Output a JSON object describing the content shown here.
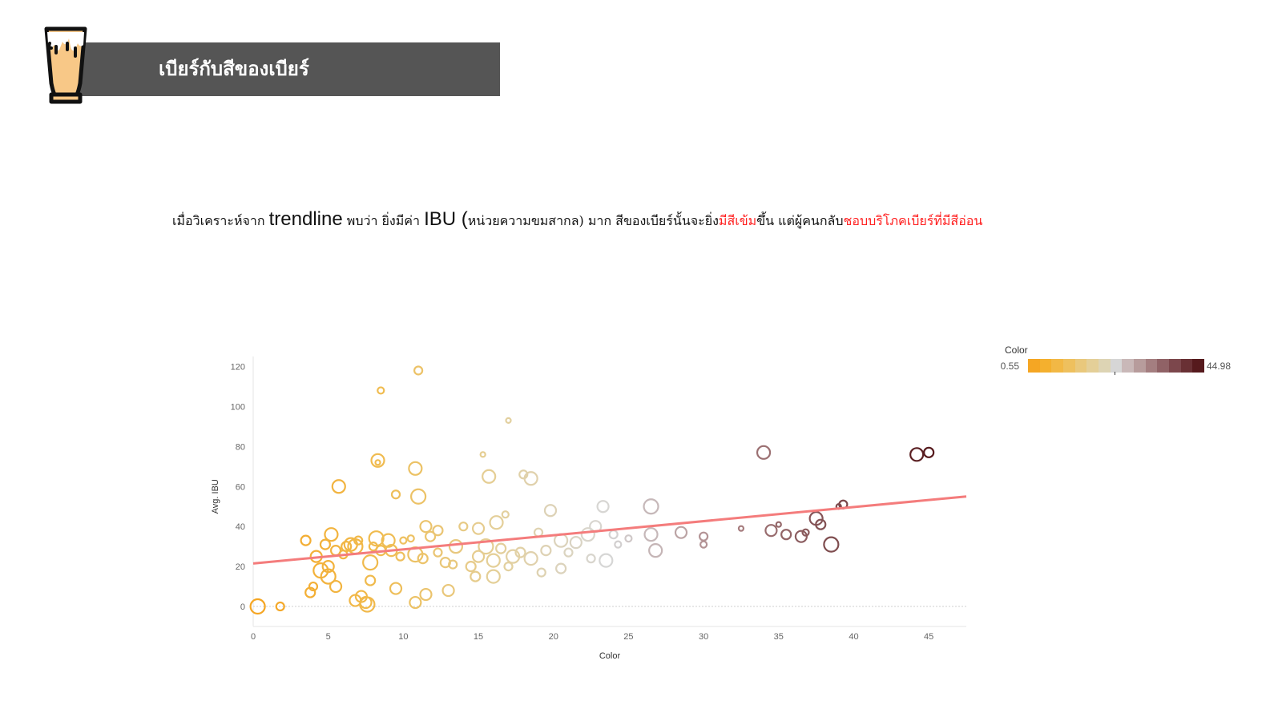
{
  "header": {
    "title": "เบียร์กับสีของเบียร์",
    "icon": "beer-glass-icon",
    "bar_color": "#555555"
  },
  "headline": {
    "part1": "เมื่อวิเคราะห์จาก ",
    "trendline": "trendline",
    "part2": " พบว่า ยิ่งมีค่า ",
    "ibu": "IBU",
    "paren": " (",
    "part3": "หน่วยความขมสากล) มาก สีของเบียร์นั้นจะยิ่ง",
    "red1": "มีสีเข้ม",
    "part4": "ขึ้น แต่ผู้คนกลับ",
    "red2": "ชอบบริโภคเบียร์ที่มีสีอ่อน",
    "highlight_color": "#ff2020"
  },
  "legend": {
    "title": "Color",
    "min": "0.55",
    "max": "44.98",
    "colors": [
      "#f5a623",
      "#f4b02e",
      "#f2b845",
      "#eec05e",
      "#e9c87c",
      "#e4cf98",
      "#ddd4b4",
      "#d6d6d6",
      "#c9b8b8",
      "#b79c9c",
      "#a47e80",
      "#906266",
      "#7c474c",
      "#693034",
      "#561a1d"
    ]
  },
  "chart_data": {
    "type": "scatter",
    "xlabel": "Color",
    "ylabel": "Avg. IBU",
    "xlim": [
      0,
      47.5
    ],
    "ylim": [
      -10,
      125
    ],
    "xticks": [
      0,
      5,
      10,
      15,
      20,
      25,
      30,
      35,
      40,
      45
    ],
    "yticks": [
      0,
      20,
      40,
      60,
      80,
      100,
      120
    ],
    "trendline": {
      "x": [
        0,
        47.5
      ],
      "y": [
        21.5,
        55
      ],
      "color": "#f47c7c"
    },
    "points": [
      [
        0.3,
        0,
        9
      ],
      [
        1.8,
        0,
        5
      ],
      [
        3.5,
        33,
        6
      ],
      [
        3.8,
        7,
        6
      ],
      [
        4,
        10,
        5
      ],
      [
        4.2,
        25,
        7
      ],
      [
        4.5,
        18,
        9
      ],
      [
        4.8,
        31,
        6
      ],
      [
        5,
        20,
        7
      ],
      [
        5,
        15,
        9
      ],
      [
        5.2,
        36,
        8
      ],
      [
        5.5,
        28,
        6
      ],
      [
        5.5,
        10,
        7
      ],
      [
        5.7,
        60,
        8
      ],
      [
        6,
        26,
        5
      ],
      [
        6.2,
        30,
        6
      ],
      [
        6.5,
        31,
        8
      ],
      [
        6.8,
        3,
        7
      ],
      [
        6.8,
        30,
        9
      ],
      [
        7,
        33,
        5
      ],
      [
        7.2,
        5,
        7
      ],
      [
        7.5,
        2,
        7
      ],
      [
        7.6,
        1,
        9
      ],
      [
        7.8,
        13,
        6
      ],
      [
        7.8,
        22,
        9
      ],
      [
        8,
        30,
        5
      ],
      [
        8.2,
        34,
        9
      ],
      [
        8.3,
        72,
        3
      ],
      [
        8.3,
        73,
        8
      ],
      [
        8.5,
        28,
        6
      ],
      [
        8.5,
        108,
        4
      ],
      [
        9,
        33,
        8
      ],
      [
        9.2,
        28,
        7
      ],
      [
        9.5,
        9,
        7
      ],
      [
        9.5,
        56,
        5
      ],
      [
        9.8,
        25,
        5
      ],
      [
        10,
        33,
        4
      ],
      [
        10.5,
        34,
        4
      ],
      [
        10.8,
        2,
        7
      ],
      [
        10.8,
        26,
        9
      ],
      [
        10.8,
        69,
        8
      ],
      [
        11,
        118,
        5
      ],
      [
        11,
        55,
        9
      ],
      [
        11.3,
        24,
        6
      ],
      [
        11.5,
        40,
        7
      ],
      [
        11.5,
        6,
        7
      ],
      [
        11.8,
        35,
        6
      ],
      [
        12.3,
        38,
        6
      ],
      [
        12.3,
        27,
        5
      ],
      [
        12.8,
        22,
        6
      ],
      [
        13,
        8,
        7
      ],
      [
        13.3,
        21,
        5
      ],
      [
        13.5,
        30,
        8
      ],
      [
        14,
        40,
        5
      ],
      [
        14.5,
        20,
        6
      ],
      [
        14.8,
        15,
        6
      ],
      [
        15,
        25,
        7
      ],
      [
        15,
        39,
        7
      ],
      [
        15.3,
        76,
        3
      ],
      [
        15.5,
        30,
        9
      ],
      [
        15.7,
        65,
        8
      ],
      [
        16,
        15,
        8
      ],
      [
        16,
        23,
        8
      ],
      [
        16.2,
        42,
        8
      ],
      [
        16.5,
        29,
        6
      ],
      [
        16.8,
        46,
        4
      ],
      [
        17,
        93,
        3
      ],
      [
        17,
        20,
        5
      ],
      [
        17.3,
        25,
        8
      ],
      [
        17.8,
        27,
        6
      ],
      [
        18,
        66,
        5
      ],
      [
        18.5,
        64,
        8
      ],
      [
        18.5,
        24,
        8
      ],
      [
        19,
        37,
        5
      ],
      [
        19.2,
        17,
        5
      ],
      [
        19.5,
        28,
        6
      ],
      [
        19.8,
        48,
        7
      ],
      [
        20.5,
        19,
        6
      ],
      [
        20.5,
        33,
        8
      ],
      [
        21,
        27,
        5
      ],
      [
        21.5,
        32,
        7
      ],
      [
        22.3,
        36,
        8
      ],
      [
        22.5,
        24,
        5
      ],
      [
        22.8,
        40,
        7
      ],
      [
        23.3,
        50,
        7
      ],
      [
        23.5,
        23,
        8
      ],
      [
        24,
        36,
        5
      ],
      [
        24.3,
        31,
        4
      ],
      [
        25,
        34,
        4
      ],
      [
        26.5,
        36,
        8
      ],
      [
        26.5,
        50,
        9
      ],
      [
        26.8,
        28,
        8
      ],
      [
        28.5,
        37,
        7
      ],
      [
        30,
        35,
        5
      ],
      [
        30,
        31,
        4
      ],
      [
        32.5,
        39,
        3
      ],
      [
        34,
        77,
        8
      ],
      [
        34.5,
        38,
        7
      ],
      [
        35,
        41,
        3
      ],
      [
        35.5,
        36,
        6
      ],
      [
        36.5,
        35,
        7
      ],
      [
        36.8,
        37,
        4
      ],
      [
        37.5,
        44,
        8
      ],
      [
        37.8,
        41,
        6
      ],
      [
        38.5,
        31,
        9
      ],
      [
        39,
        50,
        3
      ],
      [
        39.3,
        51,
        5
      ],
      [
        44.2,
        76,
        8
      ],
      [
        45,
        77,
        6
      ]
    ]
  }
}
